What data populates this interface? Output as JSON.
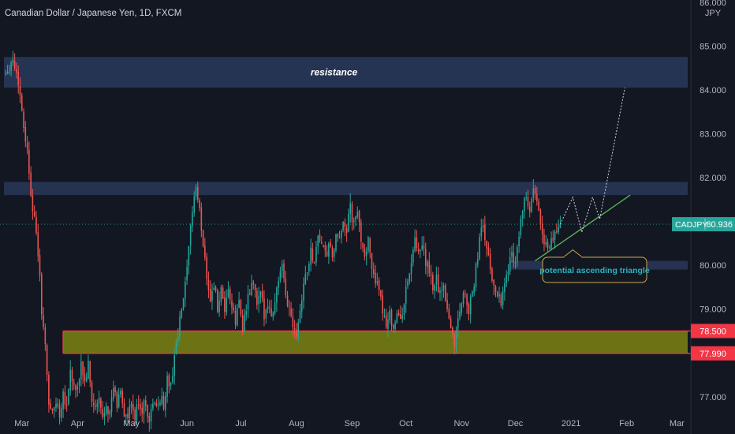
{
  "header": {
    "title": "Canadian Dollar / Japanese Yen, 1D, FXCM"
  },
  "axis": {
    "currency_label": "JPY"
  },
  "colors": {
    "background": "#131722",
    "up": "#26a69a",
    "down": "#ef5350",
    "zone_blue": "#2a3a5c",
    "zone_yellow": "#7c8412",
    "zone_red_line": "#f23645",
    "trend_line": "#5db65a",
    "callout_border": "#d4a94a",
    "callout_text": "#2bb3c0",
    "price_badge": "#26a69a",
    "support_badge": "#f23645"
  },
  "chart_data": {
    "type": "candlestick",
    "title": "Canadian Dollar / Japanese Yen, 1D, FXCM",
    "symbol": "CADJPY",
    "current_price": 80.936,
    "price_label": "80.936",
    "ylim": [
      76.15,
      86.05
    ],
    "y_ticks": [
      {
        "value": 86.0,
        "label": "86.000"
      },
      {
        "value": 85.0,
        "label": "85.000"
      },
      {
        "value": 84.0,
        "label": "84.000"
      },
      {
        "value": 83.0,
        "label": "83.000"
      },
      {
        "value": 82.0,
        "label": "82.000"
      },
      {
        "value": 80.0,
        "label": "80.000"
      },
      {
        "value": 79.0,
        "label": "79.000"
      },
      {
        "value": 77.0,
        "label": "77.000"
      }
    ],
    "x_ticks": [
      {
        "day": 0,
        "label": "Mar"
      },
      {
        "day": 31,
        "label": "Apr"
      },
      {
        "day": 61,
        "label": "May"
      },
      {
        "day": 92,
        "label": "Jun"
      },
      {
        "day": 122,
        "label": "Jul"
      },
      {
        "day": 153,
        "label": "Aug"
      },
      {
        "day": 184,
        "label": "Sep"
      },
      {
        "day": 214,
        "label": "Oct"
      },
      {
        "day": 245,
        "label": "Nov"
      },
      {
        "day": 275,
        "label": "Dec"
      },
      {
        "day": 306,
        "label": "2021"
      },
      {
        "day": 337,
        "label": "Feb"
      },
      {
        "day": 365,
        "label": "Mar"
      }
    ],
    "price_path": [
      [
        -9,
        84.4
      ],
      [
        -5,
        84.7
      ],
      [
        -2,
        84.2
      ],
      [
        1,
        83.2
      ],
      [
        3,
        82.6
      ],
      [
        5,
        81.7
      ],
      [
        7,
        81.0
      ],
      [
        9,
        80.3
      ],
      [
        11,
        79.0
      ],
      [
        13,
        78.1
      ],
      [
        15,
        76.9
      ],
      [
        17,
        76.6
      ],
      [
        19,
        76.9
      ],
      [
        21,
        76.6
      ],
      [
        23,
        77.1
      ],
      [
        25,
        76.8
      ],
      [
        27,
        77.6
      ],
      [
        29,
        77.2
      ],
      [
        31,
        77.1
      ],
      [
        33,
        77.8
      ],
      [
        35,
        77.3
      ],
      [
        37,
        77.7
      ],
      [
        39,
        76.9
      ],
      [
        41,
        76.7
      ],
      [
        43,
        76.9
      ],
      [
        45,
        76.5
      ],
      [
        47,
        76.9
      ],
      [
        49,
        76.6
      ],
      [
        51,
        77.2
      ],
      [
        53,
        76.8
      ],
      [
        55,
        77.2
      ],
      [
        57,
        76.6
      ],
      [
        59,
        76.5
      ],
      [
        61,
        76.8
      ],
      [
        63,
        76.5
      ],
      [
        65,
        76.9
      ],
      [
        67,
        76.7
      ],
      [
        69,
        76.9
      ],
      [
        71,
        76.4
      ],
      [
        73,
        76.9
      ],
      [
        75,
        76.7
      ],
      [
        77,
        77.0
      ],
      [
        79,
        76.8
      ],
      [
        81,
        77.4
      ],
      [
        83,
        77.2
      ],
      [
        85,
        78.0
      ],
      [
        87,
        78.4
      ],
      [
        89,
        79.0
      ],
      [
        91,
        79.5
      ],
      [
        93,
        80.3
      ],
      [
        95,
        81.3
      ],
      [
        97,
        81.8
      ],
      [
        99,
        81.2
      ],
      [
        101,
        80.5
      ],
      [
        103,
        79.8
      ],
      [
        105,
        79.2
      ],
      [
        107,
        79.6
      ],
      [
        109,
        79.0
      ],
      [
        111,
        79.4
      ],
      [
        113,
        78.8
      ],
      [
        115,
        79.5
      ],
      [
        117,
        79.0
      ],
      [
        119,
        78.7
      ],
      [
        121,
        79.2
      ],
      [
        123,
        78.6
      ],
      [
        125,
        79.0
      ],
      [
        127,
        79.4
      ],
      [
        129,
        79.6
      ],
      [
        131,
        79.1
      ],
      [
        133,
        79.3
      ],
      [
        135,
        78.9
      ],
      [
        137,
        79.2
      ],
      [
        139,
        78.8
      ],
      [
        141,
        79.2
      ],
      [
        143,
        79.7
      ],
      [
        145,
        79.9
      ],
      [
        147,
        79.3
      ],
      [
        149,
        79.0
      ],
      [
        151,
        78.7
      ],
      [
        153,
        78.5
      ],
      [
        155,
        79.0
      ],
      [
        157,
        79.6
      ],
      [
        159,
        79.9
      ],
      [
        161,
        80.3
      ],
      [
        163,
        80.1
      ],
      [
        165,
        80.7
      ],
      [
        167,
        80.5
      ],
      [
        169,
        80.2
      ],
      [
        171,
        80.4
      ],
      [
        173,
        80.2
      ],
      [
        175,
        80.6
      ],
      [
        177,
        80.5
      ],
      [
        179,
        81.1
      ],
      [
        181,
        80.8
      ],
      [
        183,
        81.3
      ],
      [
        185,
        80.9
      ],
      [
        187,
        81.2
      ],
      [
        189,
        80.6
      ],
      [
        191,
        80.3
      ],
      [
        193,
        80.5
      ],
      [
        195,
        80.0
      ],
      [
        197,
        79.7
      ],
      [
        199,
        79.3
      ],
      [
        201,
        79.0
      ],
      [
        203,
        78.7
      ],
      [
        205,
        78.9
      ],
      [
        207,
        78.6
      ],
      [
        209,
        78.9
      ],
      [
        211,
        78.7
      ],
      [
        213,
        79.2
      ],
      [
        215,
        79.6
      ],
      [
        217,
        80.1
      ],
      [
        219,
        80.5
      ],
      [
        221,
        80.2
      ],
      [
        223,
        80.4
      ],
      [
        225,
        80.1
      ],
      [
        227,
        79.8
      ],
      [
        229,
        79.5
      ],
      [
        231,
        79.7
      ],
      [
        233,
        79.3
      ],
      [
        235,
        79.6
      ],
      [
        237,
        79.0
      ],
      [
        239,
        78.6
      ],
      [
        241,
        78.2
      ],
      [
        243,
        78.8
      ],
      [
        245,
        79.2
      ],
      [
        247,
        79.4
      ],
      [
        249,
        79.0
      ],
      [
        251,
        79.3
      ],
      [
        253,
        79.9
      ],
      [
        255,
        80.6
      ],
      [
        257,
        80.9
      ],
      [
        259,
        80.4
      ],
      [
        261,
        79.9
      ],
      [
        263,
        79.5
      ],
      [
        265,
        79.4
      ],
      [
        267,
        79.2
      ],
      [
        269,
        79.6
      ],
      [
        271,
        79.9
      ],
      [
        273,
        80.3
      ],
      [
        275,
        80.1
      ],
      [
        277,
        80.7
      ],
      [
        279,
        81.3
      ],
      [
        281,
        81.5
      ],
      [
        283,
        81.2
      ],
      [
        285,
        81.7
      ],
      [
        287,
        81.4
      ],
      [
        289,
        81.0
      ],
      [
        291,
        80.6
      ],
      [
        293,
        80.3
      ],
      [
        295,
        80.5
      ],
      [
        297,
        80.7
      ],
      [
        299,
        80.9
      ],
      [
        300,
        80.936
      ]
    ],
    "projection": [
      [
        300,
        80.936
      ],
      [
        307,
        81.55
      ],
      [
        312,
        80.75
      ],
      [
        318,
        81.55
      ],
      [
        322,
        81.05
      ],
      [
        336,
        84.05
      ]
    ],
    "annotations": {
      "resistance_zone": {
        "label": "resistance",
        "low": 84.05,
        "high": 84.75,
        "x_start": -10,
        "x_end": 371
      },
      "upper_zone": {
        "low": 81.6,
        "high": 81.9,
        "x_start": -10,
        "x_end": 371
      },
      "small_support_zone": {
        "low": 79.9,
        "high": 80.1,
        "x_start": 272,
        "x_end": 371
      },
      "support_zone": {
        "low": 77.99,
        "high": 78.5,
        "label_low": "77.990",
        "label_high": "78.500",
        "x_start": 23,
        "x_end": 371
      },
      "trend_line": {
        "from": [
          286,
          80.1
        ],
        "to": [
          339,
          81.6
        ]
      },
      "callout": {
        "text": "potential ascending triangle",
        "pointer_day": 307,
        "pointer_price": 80.35
      }
    }
  }
}
